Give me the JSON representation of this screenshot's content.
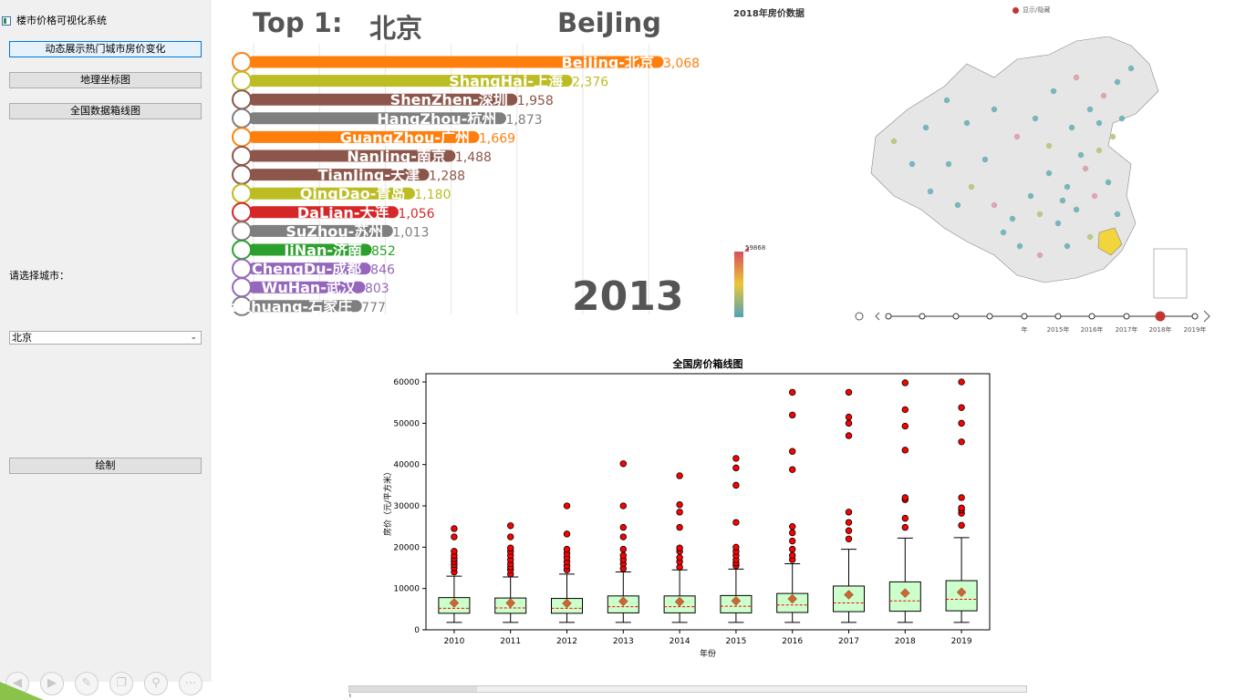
{
  "app": {
    "title": "楼市价格可视化系统"
  },
  "sidebar": {
    "buttons": [
      "动态展示热门城市房价变化",
      "地理坐标图",
      "全国数据箱线图"
    ],
    "city_label": "请选择城市：",
    "city_value": "北京",
    "draw_button": "绘制"
  },
  "race": {
    "top_label": "Top 1:",
    "top_city_cn": "北京",
    "top_city_en": "BeiJing",
    "year": "2013",
    "x_gridlines": [
      0,
      500,
      1000,
      1500,
      2000,
      2500,
      3000
    ],
    "rows": [
      {
        "label": "BeiJing-北京",
        "value": 3068,
        "value_text": "3,068",
        "color": "#ff7f0e"
      },
      {
        "label": "ShangHai-上海",
        "value": 2376,
        "value_text": "2,376",
        "color": "#bcbd22"
      },
      {
        "label": "ShenZhen-深圳",
        "value": 1958,
        "value_text": "1,958",
        "color": "#8c564b"
      },
      {
        "label": "HangZhou-杭州",
        "value": 1873,
        "value_text": "1,873",
        "color": "#7f7f7f"
      },
      {
        "label": "GuangZhou-广州",
        "value": 1669,
        "value_text": "1,669",
        "color": "#ff7f0e"
      },
      {
        "label": "NanJing-南京",
        "value": 1488,
        "value_text": "1,488",
        "color": "#8c564b"
      },
      {
        "label": "TianJing-天津",
        "value": 1288,
        "value_text": "1,288",
        "color": "#8c564b"
      },
      {
        "label": "QingDao-青岛",
        "value": 1180,
        "value_text": "1,180",
        "color": "#bcbd22"
      },
      {
        "label": "DaLian-大连",
        "value": 1056,
        "value_text": "1,056",
        "color": "#d62728"
      },
      {
        "label": "SuZhou-苏州",
        "value": 1013,
        "value_text": "1,013",
        "color": "#7f7f7f"
      },
      {
        "label": "JiNan-济南",
        "value": 852,
        "value_text": "852",
        "color": "#2ca02c"
      },
      {
        "label": "ChengDu-成都",
        "value": 846,
        "value_text": "846",
        "color": "#9467bd"
      },
      {
        "label": "WuHan-武汉",
        "value": 803,
        "value_text": "803",
        "color": "#9467bd"
      },
      {
        "label": "ShiJiaZhuang-石家庄",
        "value": 777,
        "value_text": "777",
        "color": "#7f7f7f"
      }
    ]
  },
  "map": {
    "title": "2018年房价数据",
    "legend": "显示/隐藏",
    "legend_color": "#c23531",
    "visual_max": "59868",
    "timeline": {
      "labels": [
        "年",
        "2015年",
        "2016年",
        "2017年",
        "2018年",
        "2019年"
      ],
      "active": "2018年"
    }
  },
  "chart_data": {
    "type": "box",
    "title": "全国房价箱线图",
    "xlabel": "年份",
    "ylabel": "房价（元/平方米）",
    "ylim": [
      0,
      62000
    ],
    "yticks": [
      0,
      10000,
      20000,
      30000,
      40000,
      50000,
      60000
    ],
    "categories": [
      "2010",
      "2011",
      "2012",
      "2013",
      "2014",
      "2015",
      "2016",
      "2017",
      "2018",
      "2019"
    ],
    "boxes": [
      {
        "whislo": 1800,
        "q1": 4000,
        "med": 5200,
        "mean": 6500,
        "q3": 7800,
        "whishi": 13000,
        "fliers": [
          14000,
          15000,
          15800,
          16500,
          17200,
          18000,
          19000,
          22500,
          24500
        ]
      },
      {
        "whislo": 1800,
        "q1": 4000,
        "med": 5300,
        "mean": 6500,
        "q3": 7700,
        "whishi": 12800,
        "fliers": [
          13500,
          14500,
          15200,
          16000,
          17000,
          18000,
          19000,
          19800,
          22500,
          25200
        ]
      },
      {
        "whislo": 1800,
        "q1": 4000,
        "med": 5200,
        "mean": 6400,
        "q3": 7600,
        "whishi": 13500,
        "fliers": [
          14500,
          15500,
          16500,
          17500,
          18500,
          19500,
          23200,
          30000
        ]
      },
      {
        "whislo": 1800,
        "q1": 4100,
        "med": 5600,
        "mean": 6900,
        "q3": 8200,
        "whishi": 14000,
        "fliers": [
          14800,
          16000,
          17000,
          18000,
          19500,
          22500,
          24800,
          30000,
          40200
        ]
      },
      {
        "whislo": 1800,
        "q1": 4100,
        "med": 5600,
        "mean": 6800,
        "q3": 8200,
        "whishi": 14500,
        "fliers": [
          15200,
          16500,
          17500,
          19000,
          19800,
          24800,
          28500,
          30300,
          37300
        ]
      },
      {
        "whislo": 1800,
        "q1": 4100,
        "med": 5700,
        "mean": 7000,
        "q3": 8300,
        "whishi": 14700,
        "fliers": [
          15500,
          16200,
          17000,
          18000,
          19000,
          20000,
          26000,
          35000,
          39200,
          41500
        ]
      },
      {
        "whislo": 1800,
        "q1": 4200,
        "med": 6000,
        "mean": 7500,
        "q3": 8800,
        "whishi": 16000,
        "fliers": [
          17000,
          18000,
          19500,
          21500,
          23500,
          25000,
          38800,
          43200,
          52000,
          57500
        ]
      },
      {
        "whislo": 1800,
        "q1": 4400,
        "med": 6500,
        "mean": 8500,
        "q3": 10600,
        "whishi": 19500,
        "fliers": [
          22000,
          24000,
          26000,
          28500,
          47000,
          50000,
          51500,
          57500
        ]
      },
      {
        "whislo": 1800,
        "q1": 4500,
        "med": 7000,
        "mean": 8900,
        "q3": 11600,
        "whishi": 22200,
        "fliers": [
          24800,
          27000,
          31500,
          32000,
          43500,
          49300,
          53300,
          59800
        ]
      },
      {
        "whislo": 1800,
        "q1": 4600,
        "med": 7400,
        "mean": 9100,
        "q3": 11900,
        "whishi": 22300,
        "fliers": [
          25300,
          28200,
          29000,
          29500,
          32000,
          45500,
          50000,
          53800,
          60000
        ]
      }
    ],
    "colors": {
      "box_fill": "#ccffcc",
      "median": "#ff0000",
      "mean": "#cc6633",
      "flier": "#ff0000"
    }
  }
}
